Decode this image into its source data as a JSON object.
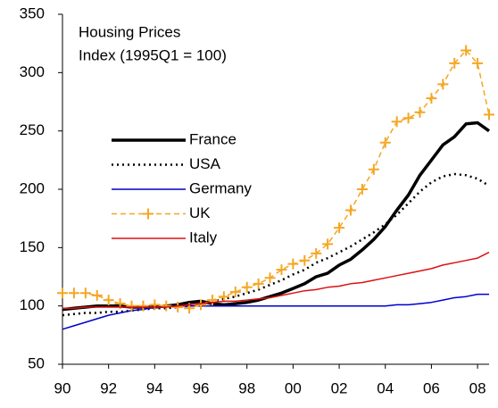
{
  "chart_data": {
    "type": "line",
    "title": "Housing Prices",
    "subtitle": "Index (1995Q1 = 100)",
    "x": [
      1990,
      1990.5,
      1991,
      1991.5,
      1992,
      1992.5,
      1993,
      1993.5,
      1994,
      1994.5,
      1995,
      1995.5,
      1996,
      1996.5,
      1997,
      1997.5,
      1998,
      1998.5,
      1999,
      1999.5,
      2000,
      2000.5,
      2001,
      2001.5,
      2002,
      2002.5,
      2003,
      2003.5,
      2004,
      2004.5,
      2005,
      2005.5,
      2006,
      2006.5,
      2007,
      2007.5,
      2008,
      2008.5
    ],
    "xlim": [
      1990,
      2008.5
    ],
    "xticks": [
      {
        "value": 1990,
        "label": "90"
      },
      {
        "value": 1992,
        "label": "92"
      },
      {
        "value": 1994,
        "label": "94"
      },
      {
        "value": 1996,
        "label": "96"
      },
      {
        "value": 1998,
        "label": "98"
      },
      {
        "value": 2000,
        "label": "00"
      },
      {
        "value": 2002,
        "label": "02"
      },
      {
        "value": 2004,
        "label": "04"
      },
      {
        "value": 2006,
        "label": "06"
      },
      {
        "value": 2008,
        "label": "08"
      }
    ],
    "ylim": [
      50,
      350
    ],
    "yticks": [
      50,
      100,
      150,
      200,
      250,
      300,
      350
    ],
    "legend": "left",
    "series": [
      {
        "name": "France",
        "color": "#000000",
        "width": 3.5,
        "dash": "solid",
        "values": [
          97,
          98,
          99,
          100,
          100,
          100,
          99,
          99,
          99,
          100,
          101,
          103,
          104,
          102,
          101,
          102,
          103,
          105,
          108,
          111,
          115,
          119,
          125,
          128,
          135,
          140,
          148,
          157,
          168,
          182,
          195,
          212,
          225,
          238,
          245,
          256,
          257,
          250
        ]
      },
      {
        "name": "USA",
        "color": "#000000",
        "width": 2.5,
        "dash": "dotted",
        "values": [
          92,
          93,
          94,
          94,
          95,
          95,
          96,
          97,
          98,
          98,
          99,
          100,
          102,
          104,
          106,
          108,
          111,
          114,
          118,
          122,
          127,
          131,
          137,
          141,
          146,
          151,
          157,
          163,
          170,
          178,
          188,
          198,
          206,
          211,
          213,
          212,
          209,
          203
        ]
      },
      {
        "name": "Germany",
        "color": "#0000cc",
        "width": 1.5,
        "dash": "solid",
        "values": [
          80,
          83,
          86,
          89,
          92,
          94,
          96,
          97,
          99,
          100,
          100,
          100,
          100,
          100,
          100,
          100,
          100,
          100,
          100,
          100,
          100,
          100,
          100,
          100,
          100,
          100,
          100,
          100,
          100,
          101,
          101,
          102,
          103,
          105,
          107,
          108,
          110,
          110
        ]
      },
      {
        "name": "UK",
        "color": "#f5a623",
        "width": 1.5,
        "dash": "dashed",
        "marker": "+",
        "values": [
          111,
          111,
          111,
          109,
          105,
          102,
          100,
          100,
          101,
          100,
          99,
          98,
          101,
          105,
          108,
          112,
          116,
          119,
          124,
          131,
          136,
          139,
          145,
          153,
          167,
          182,
          200,
          217,
          240,
          258,
          261,
          266,
          278,
          290,
          308,
          319,
          308,
          264
        ]
      },
      {
        "name": "Italy",
        "color": "#dd1111",
        "width": 1.5,
        "dash": "solid",
        "values": [
          98,
          98,
          99,
          99,
          99,
          99,
          99,
          99,
          99,
          99,
          100,
          101,
          102,
          103,
          104,
          104,
          105,
          106,
          107,
          109,
          111,
          113,
          114,
          116,
          117,
          119,
          120,
          122,
          124,
          126,
          128,
          130,
          132,
          135,
          137,
          139,
          141,
          146
        ]
      }
    ]
  }
}
